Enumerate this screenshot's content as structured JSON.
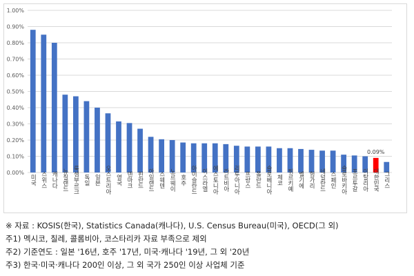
{
  "chart_data": {
    "type": "bar",
    "categories": [
      "미국",
      "스위스",
      "캐나다",
      "뉴질랜드",
      "룩셈부르크",
      "독일",
      "일본",
      "오스트리아",
      "영국",
      "덴마크",
      "핀란드",
      "아일랜드",
      "스웨덴",
      "노르웨이",
      "호주",
      "아이슬란드",
      "이스라엘",
      "에스토니아",
      "라트비아",
      "리투아니아",
      "프랑스",
      "폴란드",
      "슬로베니아",
      "체코",
      "튀르키예",
      "벨기에",
      "헝가리",
      "네덜란드",
      "스페인",
      "슬로바키아",
      "포르투갈",
      "이탈리아",
      "대한민국",
      "그리스"
    ],
    "values": [
      0.88,
      0.85,
      0.8,
      0.48,
      0.47,
      0.44,
      0.4,
      0.365,
      0.315,
      0.305,
      0.27,
      0.22,
      0.205,
      0.2,
      0.185,
      0.18,
      0.18,
      0.18,
      0.175,
      0.165,
      0.16,
      0.16,
      0.16,
      0.15,
      0.15,
      0.145,
      0.14,
      0.135,
      0.135,
      0.11,
      0.105,
      0.1,
      0.09,
      0.065
    ],
    "ylim": [
      0,
      1.0
    ],
    "yticks": [
      "0.00%",
      "0.10%",
      "0.20%",
      "0.30%",
      "0.40%",
      "0.50%",
      "0.60%",
      "0.70%",
      "0.80%",
      "0.90%",
      "1.00%"
    ],
    "grid": true,
    "highlight": {
      "category": "대한민국",
      "label": "0.09%",
      "color": "#ff0000"
    },
    "bar_color": "#4472c4"
  },
  "notes": [
    "※ 자료 :  KOSIS(한국), Statistics Canada(캐나다), U.S. Census Bureau(미국), OECD(그 외)",
    "   주1) 멕시코, 칠레, 콜롬비아, 코스타리카 자료 부족으로 제외",
    "   주2) 기준연도 : 일본 '16년, 호주 '17년, 미국·캐나다 '19년, 그 외 '20년",
    "   주3) 한국·미국·캐나다 200인 이상, 그 외 국가 250인 이상 사업체 기준"
  ]
}
